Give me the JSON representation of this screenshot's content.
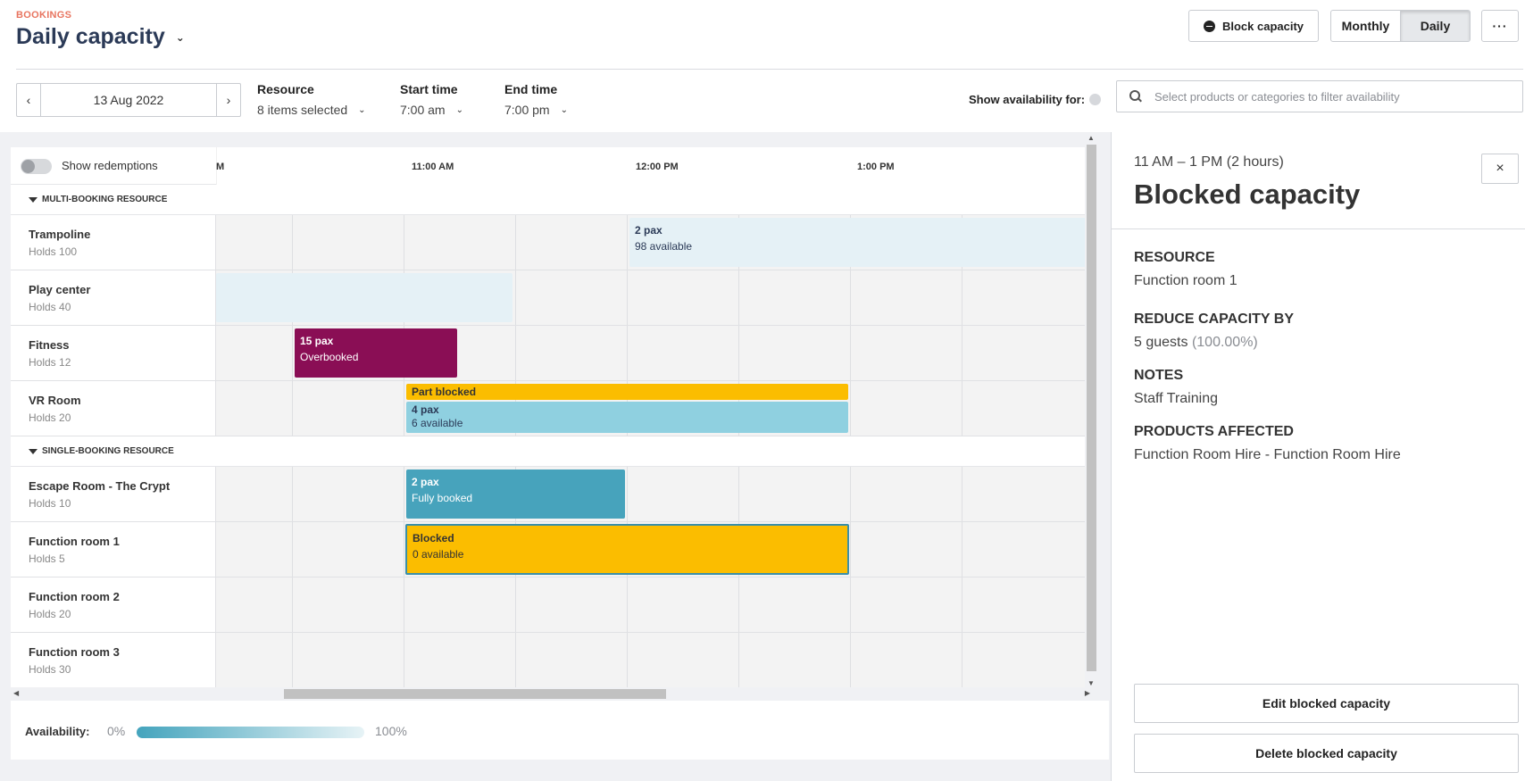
{
  "header": {
    "breadcrumb": "BOOKINGS",
    "title": "Daily capacity",
    "block_capacity_label": "Block capacity",
    "view_monthly": "Monthly",
    "view_daily": "Daily",
    "more_label": "···"
  },
  "filters": {
    "date": "13 Aug 2022",
    "prev_icon": "‹",
    "next_icon": "›",
    "resource_label": "Resource",
    "resource_value": "8 items selected",
    "start_label": "Start time",
    "start_value": "7:00 am",
    "end_label": "End time",
    "end_value": "7:00 pm",
    "show_availability_label": "Show availability for:",
    "search_placeholder": "Select products or categories to filter availability"
  },
  "grid": {
    "show_redemptions_label": "Show redemptions",
    "time_labels": [
      "M",
      "11:00 AM",
      "12:00 PM",
      "1:00 PM"
    ],
    "groups": [
      {
        "title": "MULTI-BOOKING RESOURCE",
        "rows": [
          {
            "name": "Trampoline",
            "holds": "Holds 100"
          },
          {
            "name": "Play center",
            "holds": "Holds 40"
          },
          {
            "name": "Fitness",
            "holds": "Holds 12"
          },
          {
            "name": "VR Room",
            "holds": "Holds 20"
          }
        ]
      },
      {
        "title": "SINGLE-BOOKING RESOURCE",
        "rows": [
          {
            "name": "Escape Room - The Crypt",
            "holds": "Holds 10"
          },
          {
            "name": "Function room 1",
            "holds": "Holds 5"
          },
          {
            "name": "Function room 2",
            "holds": "Holds 20"
          },
          {
            "name": "Function room 3",
            "holds": "Holds 30"
          }
        ]
      }
    ],
    "events": {
      "trampoline": {
        "line1": "2 pax",
        "line2": "98 available"
      },
      "fitness": {
        "line1": "15 pax",
        "line2": "Overbooked"
      },
      "vr_part_blocked": "Part blocked",
      "vr": {
        "line1": "4 pax",
        "line2": "6 available"
      },
      "escape": {
        "line1": "2 pax",
        "line2": "Fully booked"
      },
      "function1": {
        "line1": "Blocked",
        "line2": "0 available"
      }
    },
    "colors": {
      "light_blue": "#e5f1f6",
      "overbooked": "#8a0e55",
      "blocked": "#fbbd00",
      "mid_blue": "#8fd0e0",
      "full": "#47a3bc"
    }
  },
  "legend": {
    "label": "Availability:",
    "min": "0%",
    "max": "100%"
  },
  "panel": {
    "time_range": "11 AM – 1 PM (2 hours)",
    "title": "Blocked capacity",
    "close_icon": "×",
    "resource_label": "RESOURCE",
    "resource_value": "Function room 1",
    "reduce_label": "REDUCE CAPACITY BY",
    "reduce_value": "5 guests",
    "reduce_percent": "(100.00%)",
    "notes_label": "NOTES",
    "notes_value": "Staff Training",
    "products_label": "PRODUCTS AFFECTED",
    "products_value": "Function Room Hire - Function Room Hire",
    "edit_label": "Edit blocked capacity",
    "delete_label": "Delete blocked capacity"
  }
}
